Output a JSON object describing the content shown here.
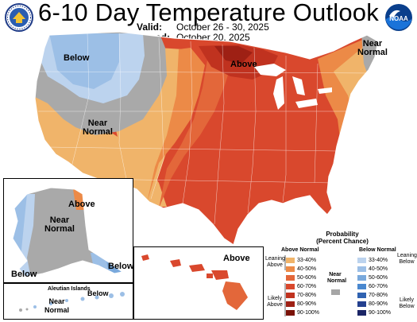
{
  "header": {
    "title": "6-10 Day Temperature Outlook",
    "valid_label": "Valid:",
    "valid_value": "October 26 - 30, 2025",
    "issued_label": "Issued:",
    "issued_value": "October 20, 2025"
  },
  "map_labels": {
    "conus_below": "Below",
    "conus_near": "Near\nNormal",
    "conus_above": "Above",
    "ne_near": "Near\nNormal",
    "ak_above": "Above",
    "ak_near": "Near\nNormal",
    "ak_below_left": "Below",
    "ak_below_right": "Below",
    "aleutian_title": "Aleutian Islands",
    "aleutian_below": "Below",
    "aleutian_near": "Near\nNormal",
    "hi_above": "Above"
  },
  "legend": {
    "title_line1": "Probability",
    "title_line2": "(Percent Chance)",
    "above_header": "Above Normal",
    "below_header": "Below Normal",
    "near_label": "Near\nNormal",
    "leaning_above": "Leaning\nAbove",
    "likely_above": "Likely\nAbove",
    "leaning_below": "Leaning\nBelow",
    "likely_below": "Likely\nBelow",
    "ranges": [
      "33-40%",
      "40-50%",
      "50-60%",
      "60-70%",
      "70-80%",
      "80-90%",
      "90-100%"
    ],
    "above_colors": [
      "#f0b46a",
      "#ec8a47",
      "#e3673a",
      "#d9482d",
      "#c0321f",
      "#9e2014",
      "#7a1208"
    ],
    "below_colors": [
      "#bcd3ee",
      "#9cbfe6",
      "#7aa9dc",
      "#4a88cf",
      "#2f62b1",
      "#24408f",
      "#1b2566"
    ],
    "near_color": "#a6a6a6"
  },
  "colors": {
    "near": "#a9a9a9",
    "below_33": "#bcd3ee",
    "below_40": "#9cbfe6",
    "above_33": "#f0b46a",
    "above_40": "#ec8a47",
    "above_50": "#e3673a",
    "above_60": "#d9482d",
    "above_70": "#c0321f"
  },
  "logos": {
    "left": "commerce-seal",
    "right": "noaa-logo",
    "right_text": "NOAA"
  }
}
